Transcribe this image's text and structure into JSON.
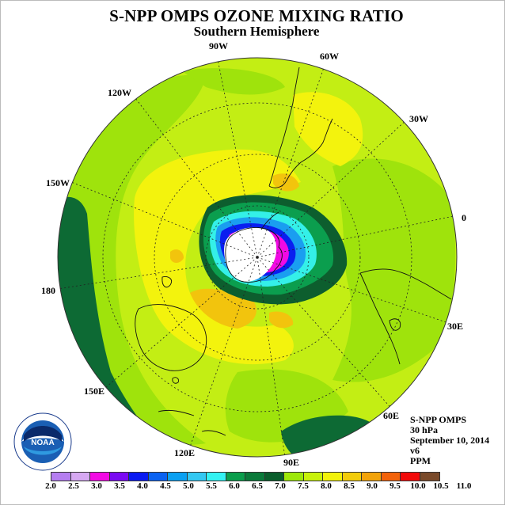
{
  "header": {
    "title": "S-NPP OMPS OZONE MIXING RATIO",
    "subtitle": "Southern Hemisphere"
  },
  "longitude_labels": [
    "90W",
    "60W",
    "30W",
    "0",
    "30E",
    "60E",
    "90E",
    "120E",
    "150E",
    "180",
    "150W",
    "120W"
  ],
  "info": {
    "instrument": "S-NPP OMPS",
    "level": "30 hPa",
    "date": "September 10, 2014",
    "version": "v6",
    "units": "PPM"
  },
  "logo": {
    "text": "NOAA",
    "ring_text": "NATIONAL OCEANIC AND ATMOSPHERIC ADMINISTRATION U.S. DEPARTMENT OF COMMERCE"
  },
  "colorbar": {
    "ticks": [
      "2.0",
      "2.5",
      "3.0",
      "3.5",
      "4.0",
      "4.5",
      "5.0",
      "5.5",
      "6.0",
      "6.5",
      "7.0",
      "7.5",
      "8.0",
      "8.5",
      "9.0",
      "9.5",
      "10.0",
      "10.5",
      "11.0"
    ],
    "colors": [
      "#b57ef0",
      "#d6a8f2",
      "#f20ae4",
      "#7a0af2",
      "#0a1af2",
      "#0a62f2",
      "#0aa0f2",
      "#33c8f2",
      "#33f2f2",
      "#0a9e4c",
      "#0a7a3a",
      "#0a5e2c",
      "#9de80a",
      "#c8f20a",
      "#f2f20a",
      "#f2cc0a",
      "#f2a30a",
      "#f2620a",
      "#f20a0a",
      "#7a4a2a"
    ]
  }
}
